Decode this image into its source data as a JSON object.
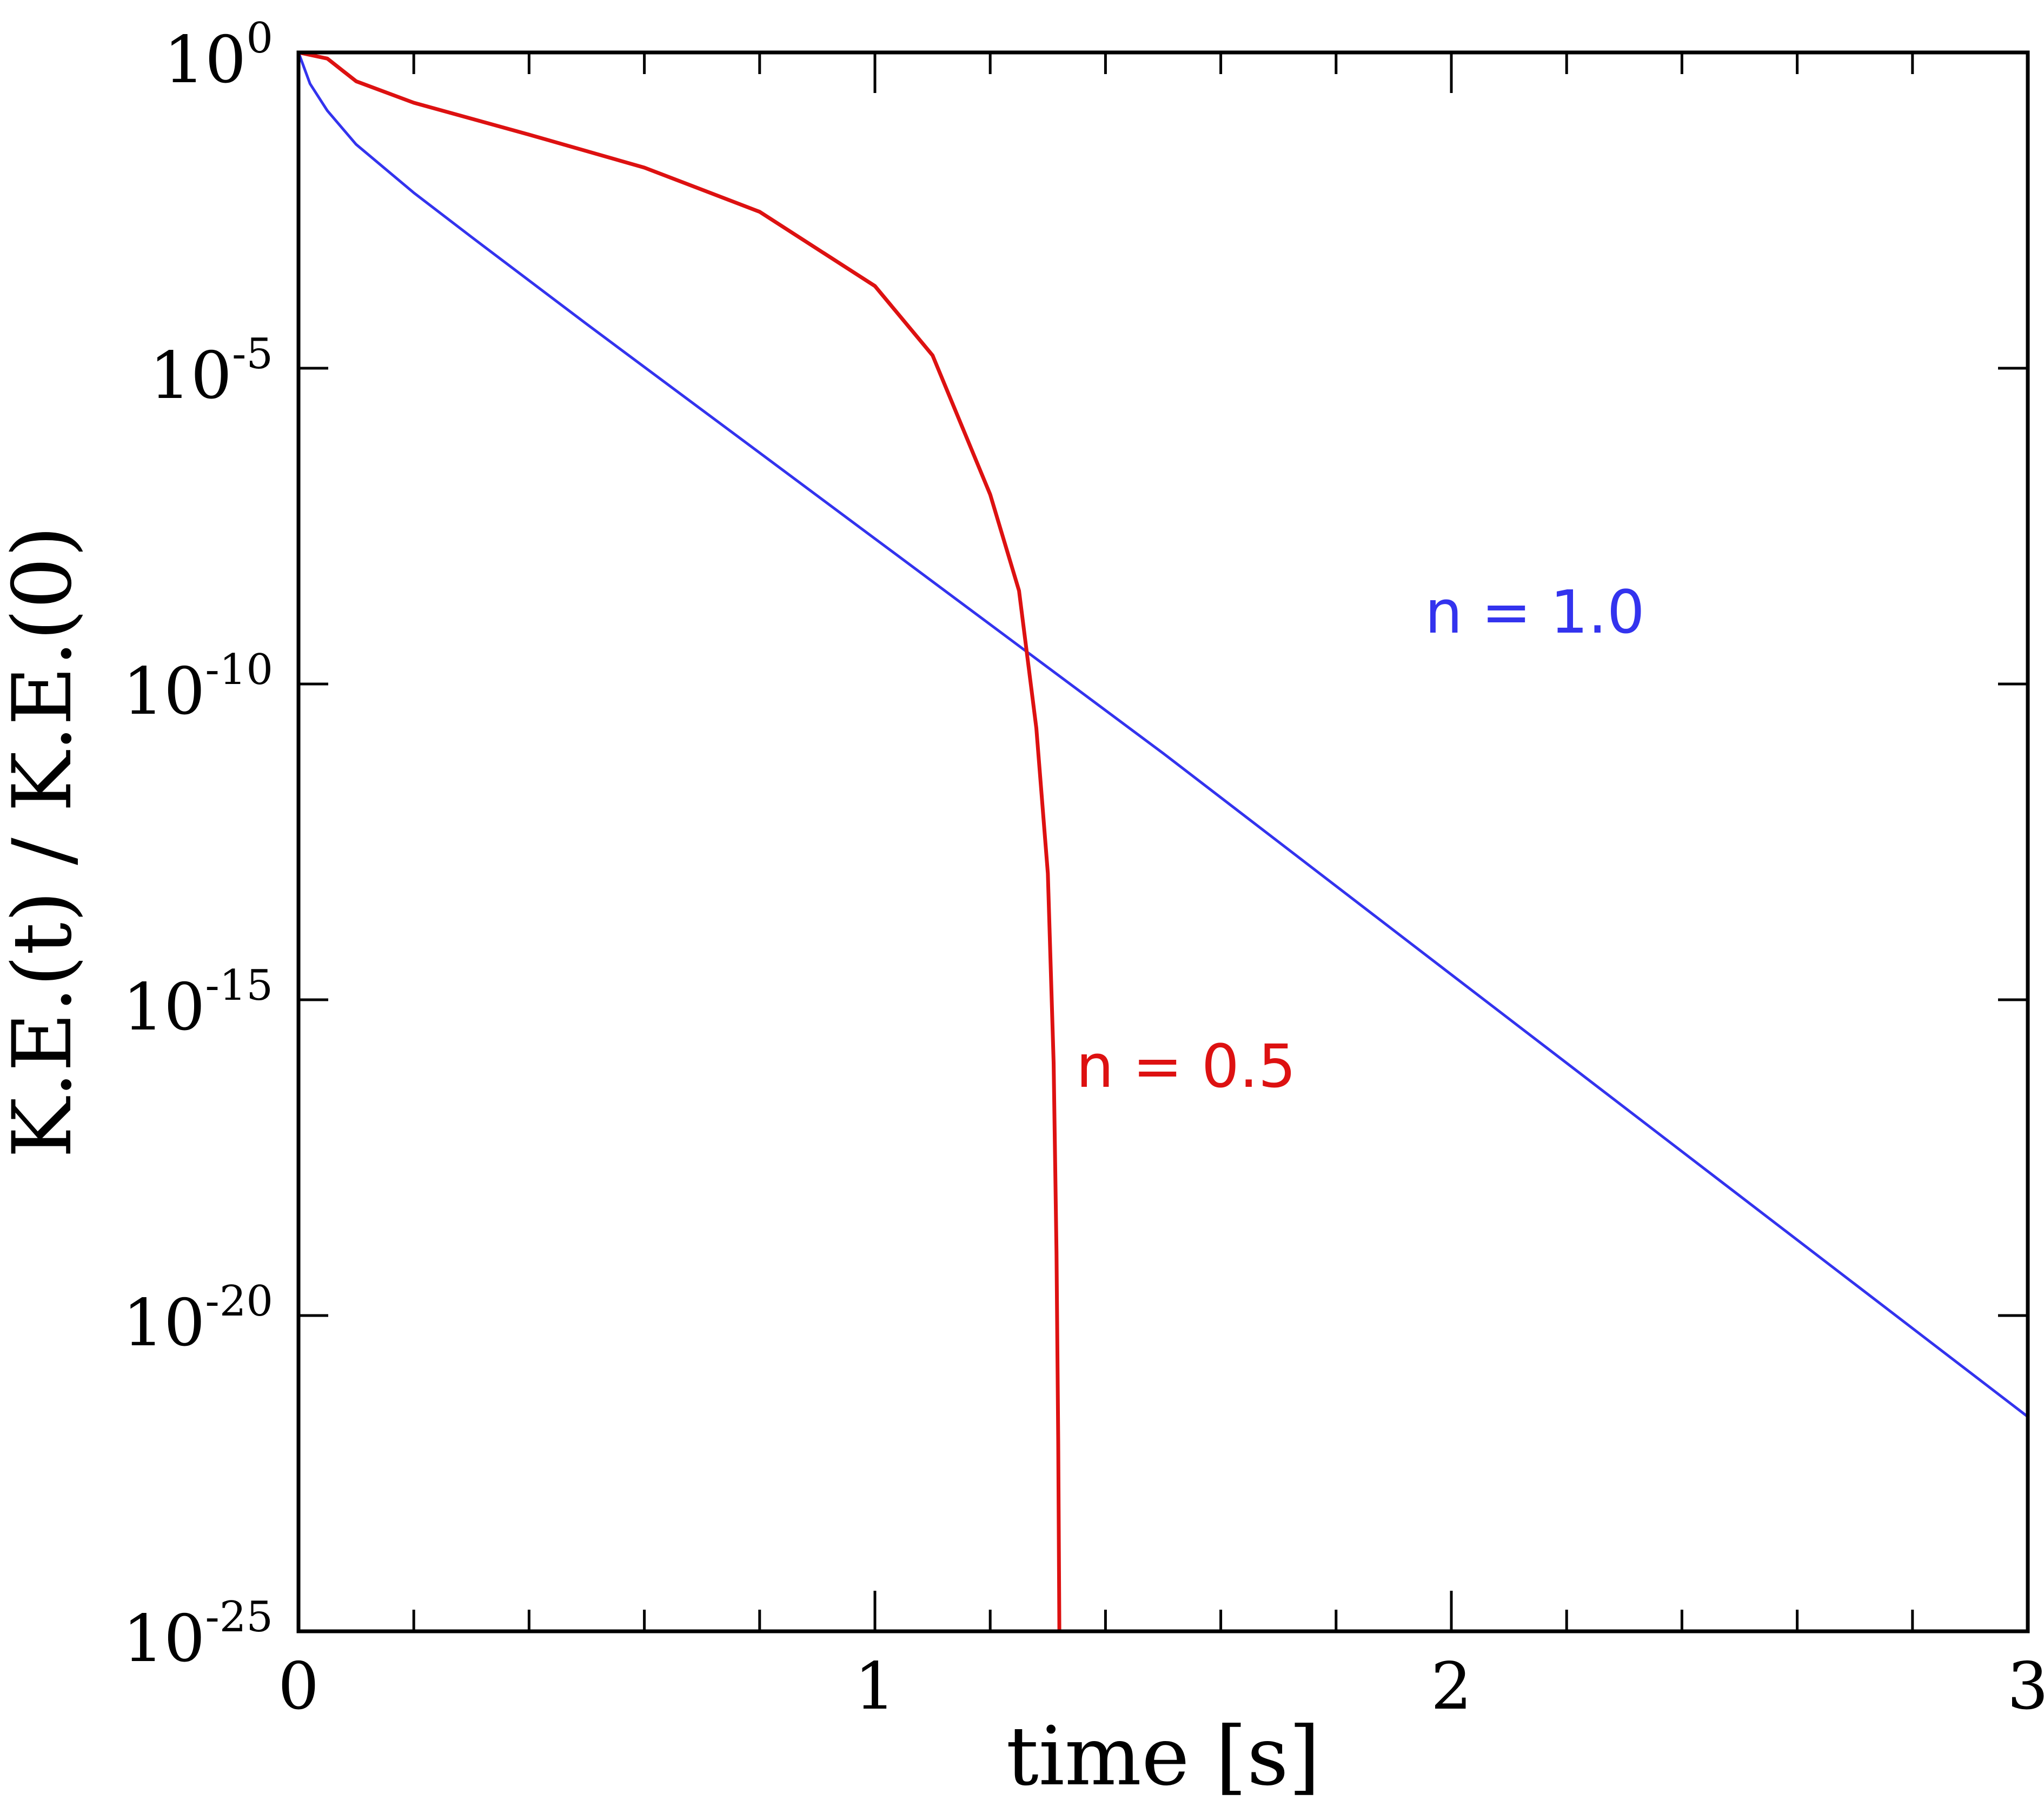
{
  "chart_data": {
    "type": "line",
    "xlabel": "time [s]",
    "ylabel": "K.E.(t) / K.E.(0)",
    "xlim": [
      0,
      3
    ],
    "ylim": [
      1e-25,
      1
    ],
    "yscale": "log",
    "grid": false,
    "x_ticks": [
      0,
      1,
      2,
      3
    ],
    "x_tick_labels": [
      "0",
      "1",
      "2",
      "3"
    ],
    "y_ticks": [
      {
        "base": "10",
        "exp": "0"
      },
      {
        "base": "10",
        "exp": "-5"
      },
      {
        "base": "10",
        "exp": "-10"
      },
      {
        "base": "10",
        "exp": "-15"
      },
      {
        "base": "10",
        "exp": "-20"
      },
      {
        "base": "10",
        "exp": "-25"
      }
    ],
    "series": [
      {
        "name": "n = 1.0",
        "color": "#3333ee",
        "x": [
          0,
          0.02,
          0.05,
          0.1,
          0.2,
          0.3,
          0.5,
          0.75,
          1.0,
          1.28,
          1.5,
          2.0,
          2.5,
          3.0
        ],
        "y": [
          1,
          0.32,
          0.12,
          0.035,
          0.006,
          0.0012,
          5e-05,
          1e-06,
          2e-08,
          2.5e-10,
          8e-12,
          2.5e-15,
          7.9e-19,
          2.5e-22
        ]
      },
      {
        "name": "n = 0.5",
        "color": "#dd1111",
        "x": [
          0,
          0.05,
          0.1,
          0.2,
          0.4,
          0.6,
          0.8,
          1.0,
          1.1,
          1.2,
          1.25,
          1.28,
          1.3,
          1.31,
          1.315,
          1.318,
          1.32
        ],
        "y": [
          1,
          0.8,
          0.35,
          0.16,
          0.05,
          0.015,
          0.003,
          0.0002,
          1.6e-05,
          1e-07,
          3e-09,
          2e-11,
          1e-13,
          1e-16,
          1e-19,
          1e-22,
          1e-25
        ]
      }
    ],
    "annotations": [
      "n = 1.0",
      "n = 0.5"
    ]
  }
}
